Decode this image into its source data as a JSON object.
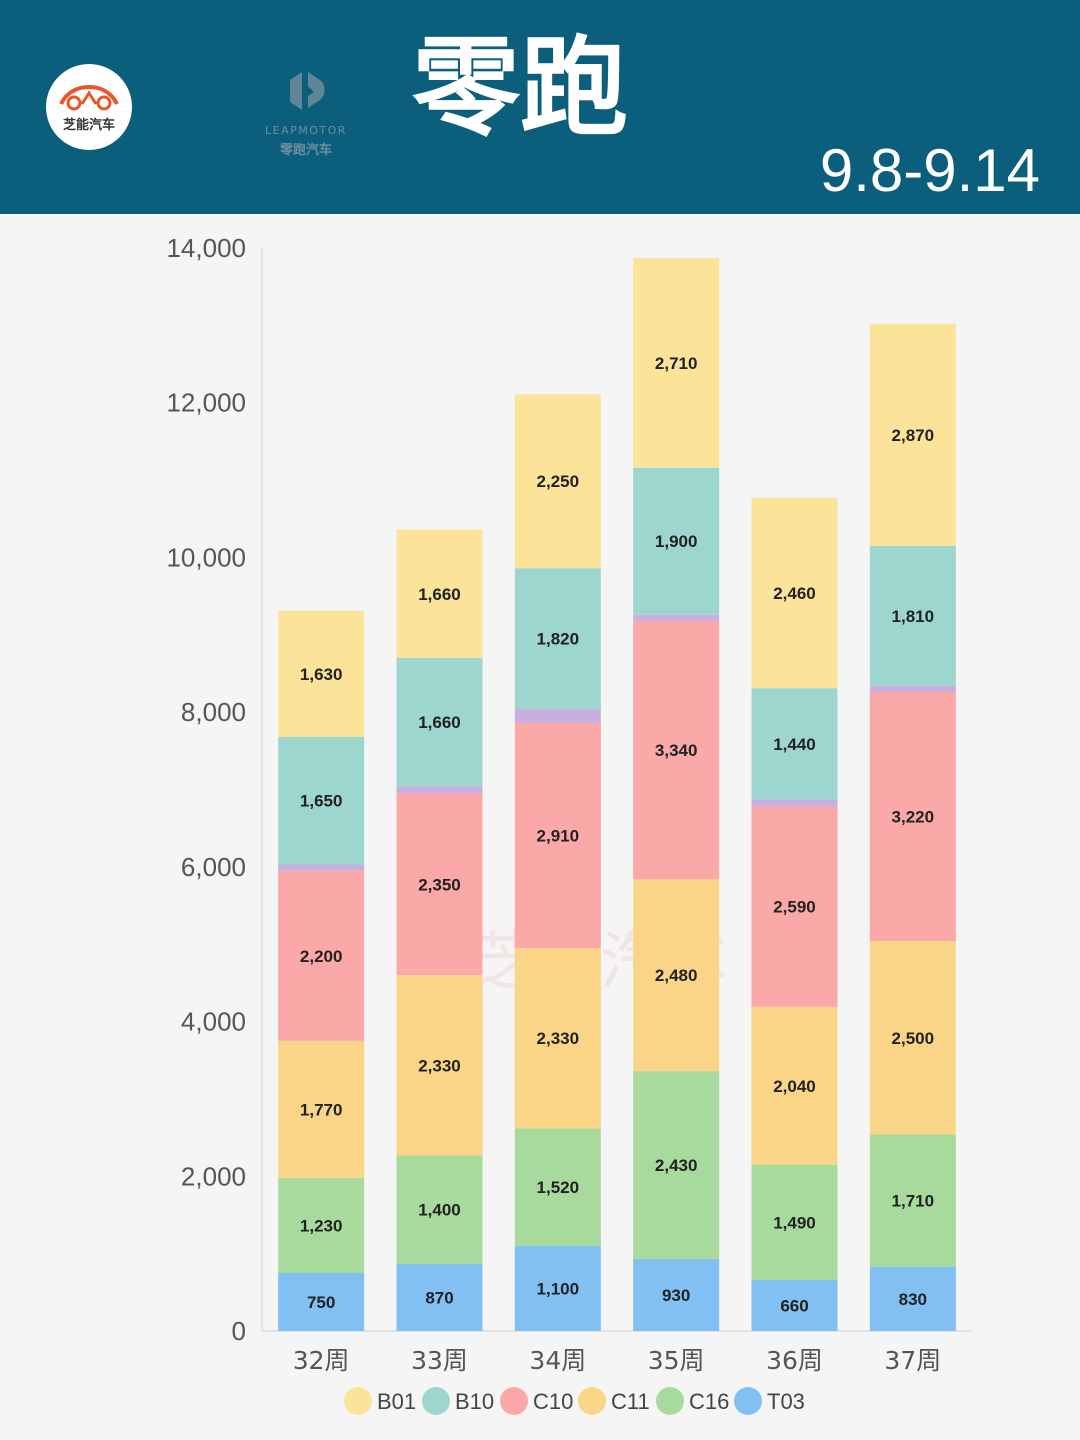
{
  "header": {
    "logo_text": "芝能汽车",
    "brand_en": "LEAPMOTOR",
    "brand_cn": "零跑汽车",
    "title": "零跑",
    "date_range": "9.8-9.14"
  },
  "watermark": "芝能汽车",
  "colors": {
    "header_bg": "#0c5f7c",
    "B01": "#fbe39a",
    "B10": "#9dd6ce",
    "C10": "#fba8a8",
    "C11": "#fbd587",
    "C16": "#a8da9d",
    "T03": "#82bff3",
    "other": "#c9aee0"
  },
  "chart_data": {
    "type": "bar",
    "stacked": true,
    "categories": [
      "32周",
      "33周",
      "34周",
      "35周",
      "36周",
      "37周"
    ],
    "ylim": [
      0,
      14000
    ],
    "yticks": [
      0,
      2000,
      4000,
      6000,
      8000,
      10000,
      12000,
      14000
    ],
    "ytick_labels": [
      "0",
      "2,000",
      "4,000",
      "6,000",
      "8,000",
      "10,000",
      "12,000",
      "14,000"
    ],
    "legend_position": "bottom",
    "grid": false,
    "series": [
      {
        "name": "T03",
        "values": [
          750,
          870,
          1100,
          930,
          660,
          830
        ],
        "labels": [
          "750",
          "870",
          "1,100",
          "930",
          "660",
          "830"
        ]
      },
      {
        "name": "C16",
        "values": [
          1230,
          1400,
          1520,
          2430,
          1490,
          1710
        ],
        "labels": [
          "1,230",
          "1,400",
          "1,520",
          "2,430",
          "1,490",
          "1,710"
        ]
      },
      {
        "name": "C11",
        "values": [
          1770,
          2330,
          2330,
          2480,
          2040,
          2500
        ],
        "labels": [
          "1,770",
          "2,330",
          "2,330",
          "2,480",
          "2,040",
          "2,500"
        ]
      },
      {
        "name": "C10",
        "values": [
          2200,
          2350,
          2910,
          3340,
          2590,
          3220
        ],
        "labels": [
          "2,200",
          "2,350",
          "2,910",
          "3,340",
          "2,590",
          "3,220"
        ]
      },
      {
        "values": [
          80,
          90,
          180,
          80,
          90,
          80
        ]
      },
      {
        "name": "B10",
        "values": [
          1650,
          1660,
          1820,
          1900,
          1440,
          1810
        ],
        "labels": [
          "1,650",
          "1,660",
          "1,820",
          "1,900",
          "1,440",
          "1,810"
        ]
      },
      {
        "name": "B01",
        "values": [
          1630,
          1660,
          2250,
          2710,
          2460,
          2870
        ],
        "labels": [
          "1,630",
          "1,660",
          "2,250",
          "2,710",
          "2,460",
          "2,870"
        ]
      }
    ],
    "legend": [
      "B01",
      "B10",
      "C10",
      "C11",
      "C16",
      "T03"
    ]
  }
}
